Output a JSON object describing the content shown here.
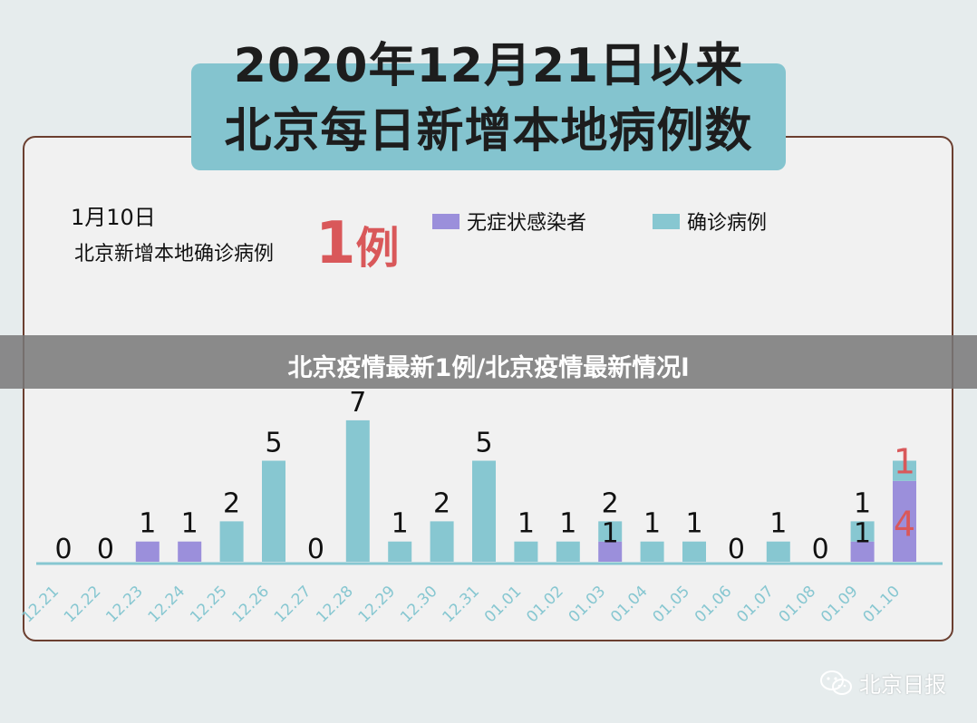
{
  "header": {
    "title_line1": "2020年12月21日以来",
    "title_line2": "北京每日新增本地病例数"
  },
  "summary": {
    "date": "1月10日",
    "text": "北京新增本地确诊病例",
    "count_number": "1",
    "count_unit": "例"
  },
  "overlay": {
    "text": "北京疫情最新1例/北京疫情最新情况l"
  },
  "watermark": {
    "icon": "wechat-icon",
    "text": "北京日报"
  },
  "colors": {
    "asymptomatic": "#9b8fdb",
    "confirmed": "#87c7d1",
    "highlight": "#d9585a",
    "axis_label": "#87c7d1"
  },
  "chart_data": {
    "type": "bar",
    "stacked": true,
    "categories": [
      "12.21",
      "12.22",
      "12.23",
      "12.24",
      "12.25",
      "12.26",
      "12.27",
      "12.28",
      "12.29",
      "12.30",
      "12.31",
      "01.01",
      "01.02",
      "01.03",
      "01.04",
      "01.05",
      "01.06",
      "01.07",
      "01.08",
      "01.09",
      "01.10"
    ],
    "series": [
      {
        "name": "无症状感染者",
        "values": [
          0,
          0,
          1,
          1,
          0,
          0,
          0,
          0,
          0,
          0,
          0,
          0,
          0,
          1,
          0,
          0,
          0,
          0,
          0,
          1,
          4
        ]
      },
      {
        "name": "确诊病例",
        "values": [
          0,
          0,
          0,
          0,
          2,
          5,
          0,
          7,
          1,
          2,
          5,
          1,
          1,
          1,
          1,
          1,
          0,
          1,
          0,
          1,
          1
        ]
      }
    ],
    "labels": [
      {
        "top": "0",
        "bottom": ""
      },
      {
        "top": "0",
        "bottom": ""
      },
      {
        "top": "1",
        "bottom": ""
      },
      {
        "top": "1",
        "bottom": ""
      },
      {
        "top": "2",
        "bottom": ""
      },
      {
        "top": "5",
        "bottom": ""
      },
      {
        "top": "0",
        "bottom": ""
      },
      {
        "top": "7",
        "bottom": ""
      },
      {
        "top": "1",
        "bottom": ""
      },
      {
        "top": "2",
        "bottom": ""
      },
      {
        "top": "5",
        "bottom": ""
      },
      {
        "top": "1",
        "bottom": ""
      },
      {
        "top": "1",
        "bottom": ""
      },
      {
        "top": "2",
        "bottom": "1"
      },
      {
        "top": "1",
        "bottom": ""
      },
      {
        "top": "1",
        "bottom": ""
      },
      {
        "top": "0",
        "bottom": ""
      },
      {
        "top": "1",
        "bottom": ""
      },
      {
        "top": "0",
        "bottom": ""
      },
      {
        "top": "1",
        "bottom": "1"
      },
      {
        "top": "1",
        "bottom": "4",
        "highlight": true
      }
    ],
    "ylim": [
      0,
      8
    ],
    "legend_position": "top-right",
    "grid": false
  }
}
